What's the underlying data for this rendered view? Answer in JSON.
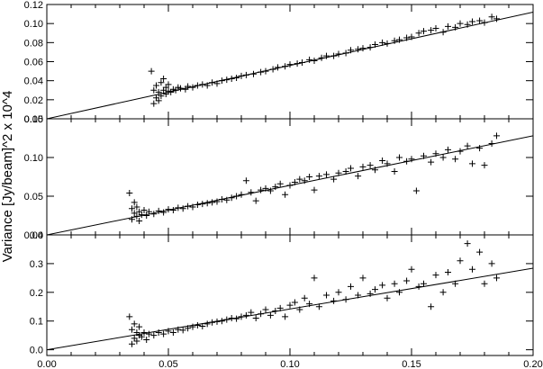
{
  "figure": {
    "ylabel": "Variance [Jy/beam]^2 x 10^4",
    "xlabel": ""
  },
  "chart_data": [
    {
      "type": "scatter",
      "marker": "+",
      "color": "#000000",
      "xlim": [
        0.0,
        0.2
      ],
      "ylim": [
        0.0,
        0.12
      ],
      "yticks": [
        0.0,
        0.02,
        0.04,
        0.06,
        0.08,
        0.1,
        0.12
      ],
      "ytick_labels": [
        "0.00",
        "0.02",
        "0.04",
        "0.06",
        "0.08",
        "0.10",
        "0.12"
      ],
      "fit_line": {
        "slope": 0.56,
        "intercept": 0.0
      },
      "points": [
        [
          0.043,
          0.05
        ],
        [
          0.044,
          0.016
        ],
        [
          0.044,
          0.03
        ],
        [
          0.045,
          0.022
        ],
        [
          0.045,
          0.035
        ],
        [
          0.046,
          0.019
        ],
        [
          0.046,
          0.028
        ],
        [
          0.047,
          0.038
        ],
        [
          0.047,
          0.024
        ],
        [
          0.048,
          0.03
        ],
        [
          0.048,
          0.042
        ],
        [
          0.049,
          0.026
        ],
        [
          0.049,
          0.033
        ],
        [
          0.05,
          0.029
        ],
        [
          0.05,
          0.036
        ],
        [
          0.051,
          0.028
        ],
        [
          0.052,
          0.031
        ],
        [
          0.053,
          0.03
        ],
        [
          0.054,
          0.033
        ],
        [
          0.055,
          0.032
        ],
        [
          0.057,
          0.031
        ],
        [
          0.058,
          0.034
        ],
        [
          0.06,
          0.033
        ],
        [
          0.062,
          0.035
        ],
        [
          0.064,
          0.036
        ],
        [
          0.066,
          0.035
        ],
        [
          0.068,
          0.038
        ],
        [
          0.07,
          0.037
        ],
        [
          0.072,
          0.04
        ],
        [
          0.074,
          0.041
        ],
        [
          0.076,
          0.042
        ],
        [
          0.078,
          0.043
        ],
        [
          0.08,
          0.045
        ],
        [
          0.082,
          0.046
        ],
        [
          0.085,
          0.047
        ],
        [
          0.088,
          0.049
        ],
        [
          0.09,
          0.05
        ],
        [
          0.093,
          0.052
        ],
        [
          0.095,
          0.054
        ],
        [
          0.098,
          0.055
        ],
        [
          0.1,
          0.057
        ],
        [
          0.103,
          0.058
        ],
        [
          0.105,
          0.059
        ],
        [
          0.108,
          0.062
        ],
        [
          0.11,
          0.061
        ],
        [
          0.113,
          0.064
        ],
        [
          0.115,
          0.066
        ],
        [
          0.118,
          0.066
        ],
        [
          0.12,
          0.068
        ],
        [
          0.123,
          0.069
        ],
        [
          0.125,
          0.072
        ],
        [
          0.128,
          0.073
        ],
        [
          0.13,
          0.074
        ],
        [
          0.133,
          0.075
        ],
        [
          0.135,
          0.078
        ],
        [
          0.138,
          0.08
        ],
        [
          0.14,
          0.079
        ],
        [
          0.143,
          0.082
        ],
        [
          0.145,
          0.083
        ],
        [
          0.148,
          0.085
        ],
        [
          0.15,
          0.086
        ],
        [
          0.153,
          0.09
        ],
        [
          0.155,
          0.092
        ],
        [
          0.158,
          0.093
        ],
        [
          0.16,
          0.095
        ],
        [
          0.163,
          0.091
        ],
        [
          0.165,
          0.097
        ],
        [
          0.168,
          0.096
        ],
        [
          0.17,
          0.1
        ],
        [
          0.173,
          0.099
        ],
        [
          0.175,
          0.102
        ],
        [
          0.178,
          0.103
        ],
        [
          0.18,
          0.101
        ],
        [
          0.183,
          0.107
        ],
        [
          0.185,
          0.105
        ]
      ]
    },
    {
      "type": "scatter",
      "marker": "+",
      "color": "#000000",
      "xlim": [
        0.0,
        0.2
      ],
      "ylim": [
        0.0,
        0.15
      ],
      "yticks": [
        0.0,
        0.05,
        0.1,
        0.15
      ],
      "ytick_labels": [
        "0.00",
        "0.05",
        "0.10",
        "0.15"
      ],
      "fit_line": {
        "slope": 0.64,
        "intercept": 0.0
      },
      "points": [
        [
          0.034,
          0.054
        ],
        [
          0.035,
          0.034
        ],
        [
          0.035,
          0.02
        ],
        [
          0.036,
          0.042
        ],
        [
          0.036,
          0.028
        ],
        [
          0.037,
          0.024
        ],
        [
          0.037,
          0.036
        ],
        [
          0.038,
          0.018
        ],
        [
          0.038,
          0.03
        ],
        [
          0.039,
          0.026
        ],
        [
          0.04,
          0.032
        ],
        [
          0.041,
          0.025
        ],
        [
          0.042,
          0.03
        ],
        [
          0.044,
          0.027
        ],
        [
          0.046,
          0.031
        ],
        [
          0.048,
          0.029
        ],
        [
          0.05,
          0.033
        ],
        [
          0.052,
          0.032
        ],
        [
          0.054,
          0.035
        ],
        [
          0.056,
          0.034
        ],
        [
          0.058,
          0.037
        ],
        [
          0.06,
          0.036
        ],
        [
          0.062,
          0.039
        ],
        [
          0.064,
          0.04
        ],
        [
          0.066,
          0.041
        ],
        [
          0.068,
          0.042
        ],
        [
          0.07,
          0.043
        ],
        [
          0.072,
          0.046
        ],
        [
          0.074,
          0.045
        ],
        [
          0.076,
          0.048
        ],
        [
          0.078,
          0.05
        ],
        [
          0.08,
          0.052
        ],
        [
          0.082,
          0.07
        ],
        [
          0.084,
          0.055
        ],
        [
          0.086,
          0.044
        ],
        [
          0.088,
          0.058
        ],
        [
          0.09,
          0.06
        ],
        [
          0.092,
          0.057
        ],
        [
          0.094,
          0.062
        ],
        [
          0.096,
          0.066
        ],
        [
          0.098,
          0.052
        ],
        [
          0.1,
          0.064
        ],
        [
          0.102,
          0.068
        ],
        [
          0.104,
          0.072
        ],
        [
          0.106,
          0.07
        ],
        [
          0.108,
          0.075
        ],
        [
          0.11,
          0.058
        ],
        [
          0.112,
          0.076
        ],
        [
          0.115,
          0.078
        ],
        [
          0.118,
          0.072
        ],
        [
          0.12,
          0.08
        ],
        [
          0.123,
          0.082
        ],
        [
          0.125,
          0.086
        ],
        [
          0.128,
          0.076
        ],
        [
          0.13,
          0.088
        ],
        [
          0.133,
          0.09
        ],
        [
          0.135,
          0.084
        ],
        [
          0.138,
          0.096
        ],
        [
          0.14,
          0.092
        ],
        [
          0.143,
          0.082
        ],
        [
          0.145,
          0.1
        ],
        [
          0.148,
          0.095
        ],
        [
          0.15,
          0.098
        ],
        [
          0.152,
          0.057
        ],
        [
          0.155,
          0.102
        ],
        [
          0.158,
          0.094
        ],
        [
          0.16,
          0.105
        ],
        [
          0.163,
          0.1
        ],
        [
          0.165,
          0.11
        ],
        [
          0.168,
          0.098
        ],
        [
          0.17,
          0.108
        ],
        [
          0.173,
          0.115
        ],
        [
          0.175,
          0.092
        ],
        [
          0.178,
          0.112
        ],
        [
          0.18,
          0.09
        ],
        [
          0.183,
          0.118
        ],
        [
          0.185,
          0.128
        ]
      ]
    },
    {
      "type": "scatter",
      "marker": "+",
      "color": "#000000",
      "xlim": [
        0.0,
        0.2
      ],
      "ylim": [
        -0.02,
        0.4
      ],
      "yticks": [
        0.0,
        0.1,
        0.2,
        0.3,
        0.4
      ],
      "ytick_labels": [
        "0.0",
        "0.1",
        "0.2",
        "0.3",
        "0.4"
      ],
      "xticks": [
        0.0,
        0.05,
        0.1,
        0.15,
        0.2
      ],
      "xtick_labels": [
        "0.00",
        "0.05",
        "0.10",
        "0.15",
        "0.20"
      ],
      "fit_line": {
        "slope": 1.42,
        "intercept": 0.0
      },
      "points": [
        [
          0.034,
          0.115
        ],
        [
          0.035,
          0.02
        ],
        [
          0.035,
          0.07
        ],
        [
          0.036,
          0.04
        ],
        [
          0.036,
          0.09
        ],
        [
          0.037,
          0.03
        ],
        [
          0.037,
          0.06
        ],
        [
          0.038,
          0.05
        ],
        [
          0.038,
          0.08
        ],
        [
          0.039,
          0.045
        ],
        [
          0.04,
          0.06
        ],
        [
          0.041,
          0.035
        ],
        [
          0.042,
          0.055
        ],
        [
          0.044,
          0.05
        ],
        [
          0.046,
          0.06
        ],
        [
          0.048,
          0.055
        ],
        [
          0.05,
          0.065
        ],
        [
          0.052,
          0.06
        ],
        [
          0.054,
          0.07
        ],
        [
          0.056,
          0.068
        ],
        [
          0.058,
          0.075
        ],
        [
          0.06,
          0.08
        ],
        [
          0.062,
          0.085
        ],
        [
          0.064,
          0.082
        ],
        [
          0.066,
          0.09
        ],
        [
          0.068,
          0.095
        ],
        [
          0.07,
          0.098
        ],
        [
          0.072,
          0.1
        ],
        [
          0.074,
          0.105
        ],
        [
          0.076,
          0.11
        ],
        [
          0.078,
          0.108
        ],
        [
          0.08,
          0.115
        ],
        [
          0.082,
          0.12
        ],
        [
          0.084,
          0.13
        ],
        [
          0.086,
          0.11
        ],
        [
          0.088,
          0.125
        ],
        [
          0.09,
          0.14
        ],
        [
          0.092,
          0.12
        ],
        [
          0.094,
          0.135
        ],
        [
          0.096,
          0.145
        ],
        [
          0.098,
          0.115
        ],
        [
          0.1,
          0.155
        ],
        [
          0.102,
          0.165
        ],
        [
          0.104,
          0.14
        ],
        [
          0.106,
          0.18
        ],
        [
          0.108,
          0.16
        ],
        [
          0.11,
          0.25
        ],
        [
          0.112,
          0.15
        ],
        [
          0.115,
          0.19
        ],
        [
          0.118,
          0.17
        ],
        [
          0.12,
          0.2
        ],
        [
          0.123,
          0.175
        ],
        [
          0.125,
          0.22
        ],
        [
          0.128,
          0.19
        ],
        [
          0.13,
          0.25
        ],
        [
          0.133,
          0.195
        ],
        [
          0.135,
          0.21
        ],
        [
          0.138,
          0.225
        ],
        [
          0.14,
          0.18
        ],
        [
          0.143,
          0.23
        ],
        [
          0.145,
          0.2
        ],
        [
          0.148,
          0.24
        ],
        [
          0.15,
          0.28
        ],
        [
          0.153,
          0.22
        ],
        [
          0.155,
          0.23
        ],
        [
          0.158,
          0.15
        ],
        [
          0.16,
          0.26
        ],
        [
          0.163,
          0.2
        ],
        [
          0.165,
          0.27
        ],
        [
          0.168,
          0.23
        ],
        [
          0.17,
          0.31
        ],
        [
          0.173,
          0.37
        ],
        [
          0.175,
          0.28
        ],
        [
          0.178,
          0.34
        ],
        [
          0.18,
          0.23
        ],
        [
          0.183,
          0.3
        ],
        [
          0.185,
          0.25
        ]
      ]
    }
  ]
}
